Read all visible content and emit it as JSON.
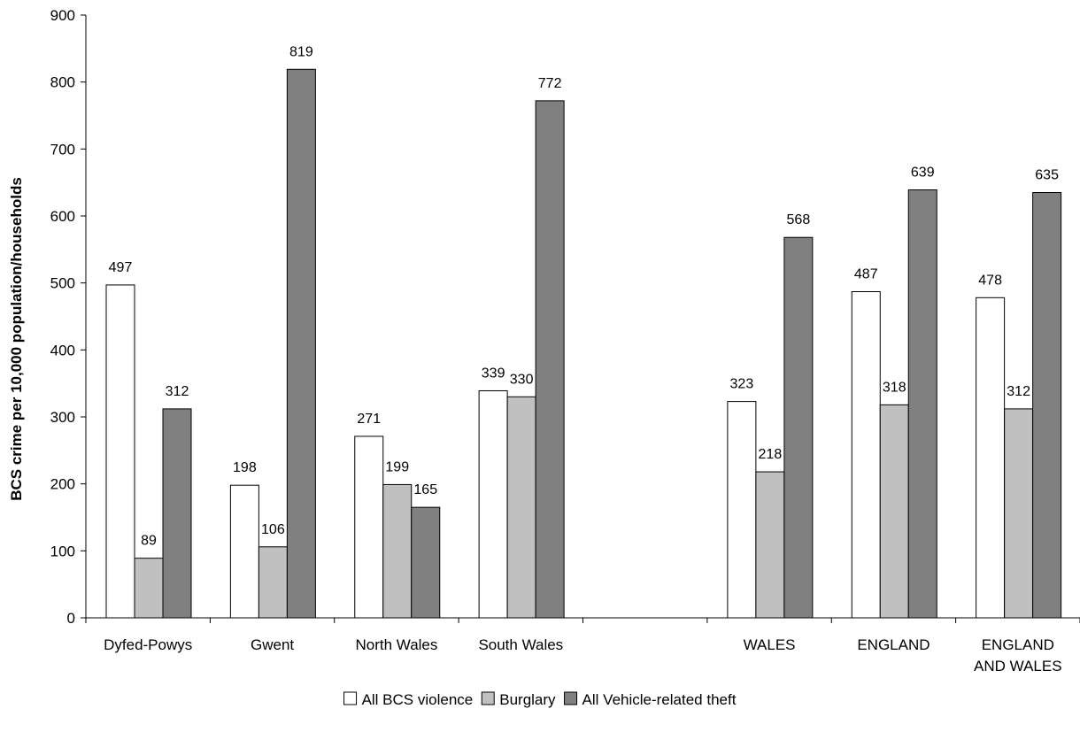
{
  "chart_data": {
    "type": "bar",
    "title": "",
    "xlabel": "",
    "ylabel": "BCS crime per 10,000 population/households",
    "ylim": [
      0,
      900
    ],
    "yticks": [
      0,
      100,
      200,
      300,
      400,
      500,
      600,
      700,
      800,
      900
    ],
    "grid": false,
    "legend_position": "bottom",
    "categories": [
      [
        "Dyfed-Powys"
      ],
      [
        "Gwent"
      ],
      [
        "North Wales"
      ],
      [
        "South Wales"
      ],
      [
        ""
      ],
      [
        "WALES"
      ],
      [
        "ENGLAND"
      ],
      [
        "ENGLAND",
        "AND WALES"
      ]
    ],
    "series": [
      {
        "name": "All BCS violence",
        "color": "#ffffff",
        "values": [
          497,
          198,
          271,
          339,
          null,
          323,
          487,
          478
        ]
      },
      {
        "name": "Burglary",
        "color": "#c0c0c0",
        "values": [
          89,
          106,
          199,
          330,
          null,
          218,
          318,
          312
        ]
      },
      {
        "name": "All Vehicle-related theft",
        "color": "#808080",
        "values": [
          312,
          819,
          165,
          772,
          null,
          568,
          639,
          635
        ]
      }
    ]
  }
}
